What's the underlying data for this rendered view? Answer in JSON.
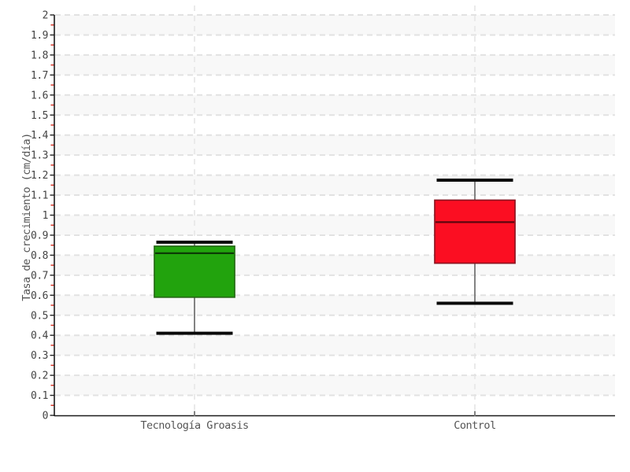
{
  "chart_data": {
    "type": "boxplot",
    "title": "",
    "xlabel": "",
    "ylabel": "Tasa de crecimiento (cm/día)",
    "ylim": [
      0,
      2
    ],
    "ytick_step": 0.1,
    "minor_tick_step": 0.05,
    "yticks": [
      "0",
      "0.1",
      "0.2",
      "0.3",
      "0.4",
      "0.5",
      "0.6",
      "0.7",
      "0.8",
      "0.9",
      "1",
      "1.1",
      "1.2",
      "1.3",
      "1.4",
      "1.5",
      "1.6",
      "1.7",
      "1.8",
      "1.9",
      "2"
    ],
    "categories": [
      "Tecnología Groasis",
      "Control"
    ],
    "legend": "none",
    "grid": "horizontal dashed lines every 0.1 with alternating shaded bands; vertical dashed line at each category center",
    "band_fill": "#f8f8f8",
    "series": [
      {
        "name": "Tecnología Groasis",
        "fill": "#22a30d",
        "border": "#256b15",
        "median_color": "#0c3a06",
        "low": 0.41,
        "q1": 0.59,
        "median": 0.81,
        "q3": 0.845,
        "high": 0.865
      },
      {
        "name": "Control",
        "fill": "#fb0e22",
        "border": "#8d1420",
        "median_color": "#5c060e",
        "low": 0.56,
        "q1": 0.76,
        "median": 0.965,
        "q3": 1.075,
        "high": 1.175
      }
    ],
    "colors": {
      "axis": "#1a1a1a",
      "major_tick": "#222222",
      "minor_tick": "#d42a1c",
      "grid_h": "#e2e2e2",
      "grid_v": "#eaeaea",
      "tick_label": "#444444",
      "axis_title": "#555555",
      "whisker_stem": "#777777",
      "whisker_cap": "#0a0a0a",
      "background": "#ffffff"
    }
  }
}
